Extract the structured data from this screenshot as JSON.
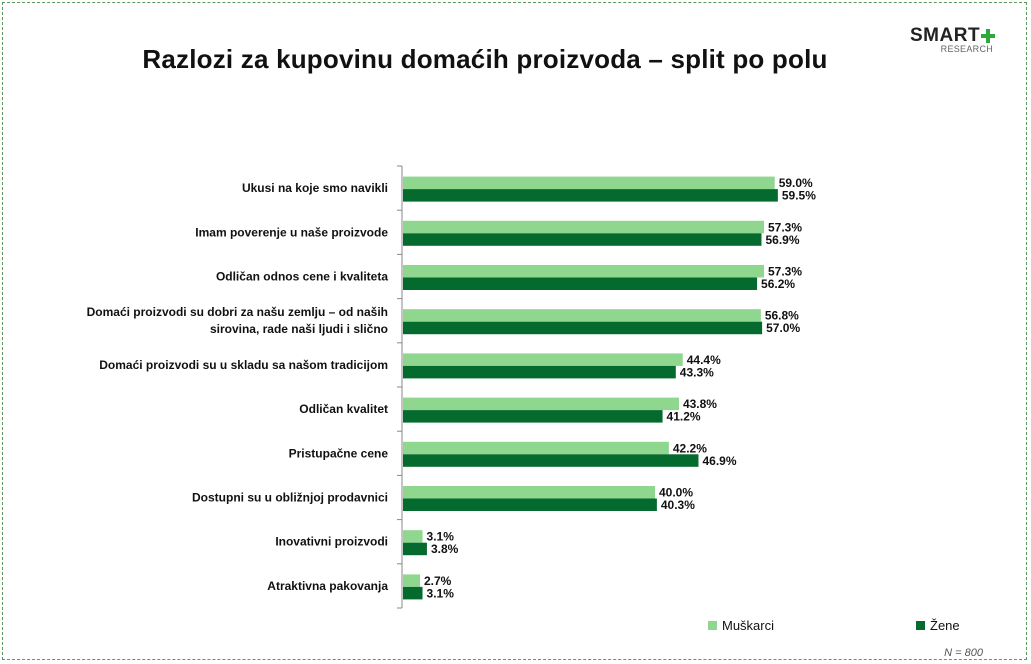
{
  "title": "Razlozi za kupovinu domaćih proizvoda – split po polu",
  "logo": {
    "main": "SMART",
    "sub": "RESEARCH"
  },
  "note": "N = 800",
  "colors": {
    "muskarci": "#8fd68f",
    "zene": "#046a2e",
    "axis": "#888888",
    "frame": "#5a9a5a",
    "logo_plus": "#2eaa3c"
  },
  "chart_data": {
    "type": "bar",
    "orientation": "horizontal",
    "title": "Razlozi za kupovinu domaćih proizvoda – split po polu",
    "categories": [
      [
        "Ukusi na koje smo navikli"
      ],
      [
        "Imam poverenje u naše proizvode"
      ],
      [
        "Odličan odnos cene i kvaliteta"
      ],
      [
        "Domaći proizvodi su dobri za našu zemlju – od naših",
        "sirovina, rade naši ljudi i slično"
      ],
      [
        "Domaći proizvodi su u skladu sa našom tradicijom"
      ],
      [
        "Odličan kvalitet"
      ],
      [
        "Pristupačne cene"
      ],
      [
        "Dostupni su u obližnjoj prodavnici"
      ],
      [
        "Inovativni proizvodi"
      ],
      [
        "Atraktivna pakovanja"
      ]
    ],
    "series": [
      {
        "name": "Muškarci",
        "values": [
          59.0,
          57.3,
          57.3,
          56.8,
          44.4,
          43.8,
          42.2,
          40.0,
          3.1,
          2.7
        ]
      },
      {
        "name": "Žene",
        "values": [
          59.5,
          56.9,
          56.2,
          57.0,
          43.3,
          41.2,
          46.9,
          40.3,
          3.8,
          3.1
        ]
      }
    ],
    "value_format": "%",
    "xlim": [
      0,
      100
    ],
    "legend_position": "bottom-right",
    "grid": false
  }
}
